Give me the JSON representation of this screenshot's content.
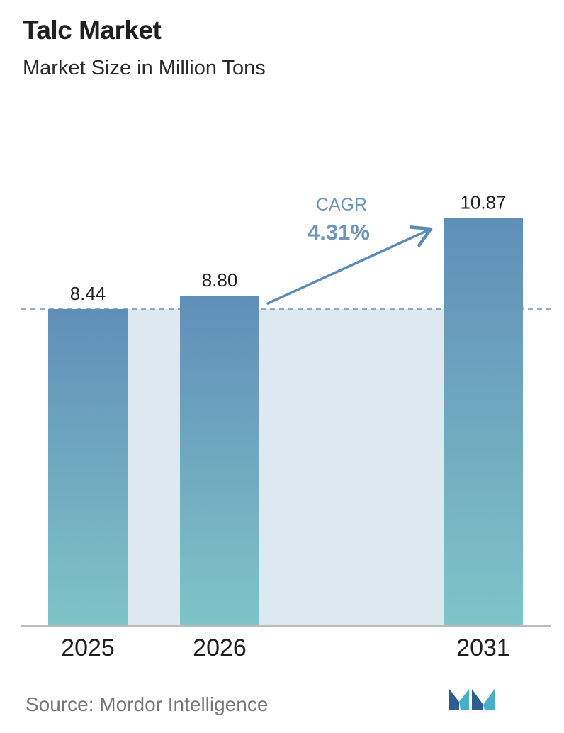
{
  "header": {
    "title": "Talc Market",
    "subtitle": "Market Size in Million Tons"
  },
  "footer": {
    "source": "Source:  Mordor Intelligence",
    "logo_name": "mordor-intelligence-logo"
  },
  "colors": {
    "bar_top": "#5f8fb8",
    "bar_bottom": "#7fc4c8",
    "band": "#dde8f0",
    "cagr_text": "#6f95bb",
    "arrow": "#5c8bb5",
    "dashed_line": "#6d93b5",
    "axis": "#bbbbbb",
    "logo_dark": "#2f5d8f",
    "logo_light": "#45b0c4"
  },
  "chart_data": {
    "type": "bar",
    "title": "Talc Market",
    "subtitle": "Market Size in Million Tons",
    "categories": [
      "2025",
      "2026",
      "2031"
    ],
    "values": [
      8.44,
      8.8,
      10.87
    ],
    "value_labels": [
      "8.44",
      "8.80",
      "10.87"
    ],
    "xlabel": "",
    "ylabel": "",
    "reference_line_value": 8.44,
    "annotation": {
      "label": "CAGR",
      "value": "4.31%"
    },
    "grid": false,
    "legend": "none"
  }
}
